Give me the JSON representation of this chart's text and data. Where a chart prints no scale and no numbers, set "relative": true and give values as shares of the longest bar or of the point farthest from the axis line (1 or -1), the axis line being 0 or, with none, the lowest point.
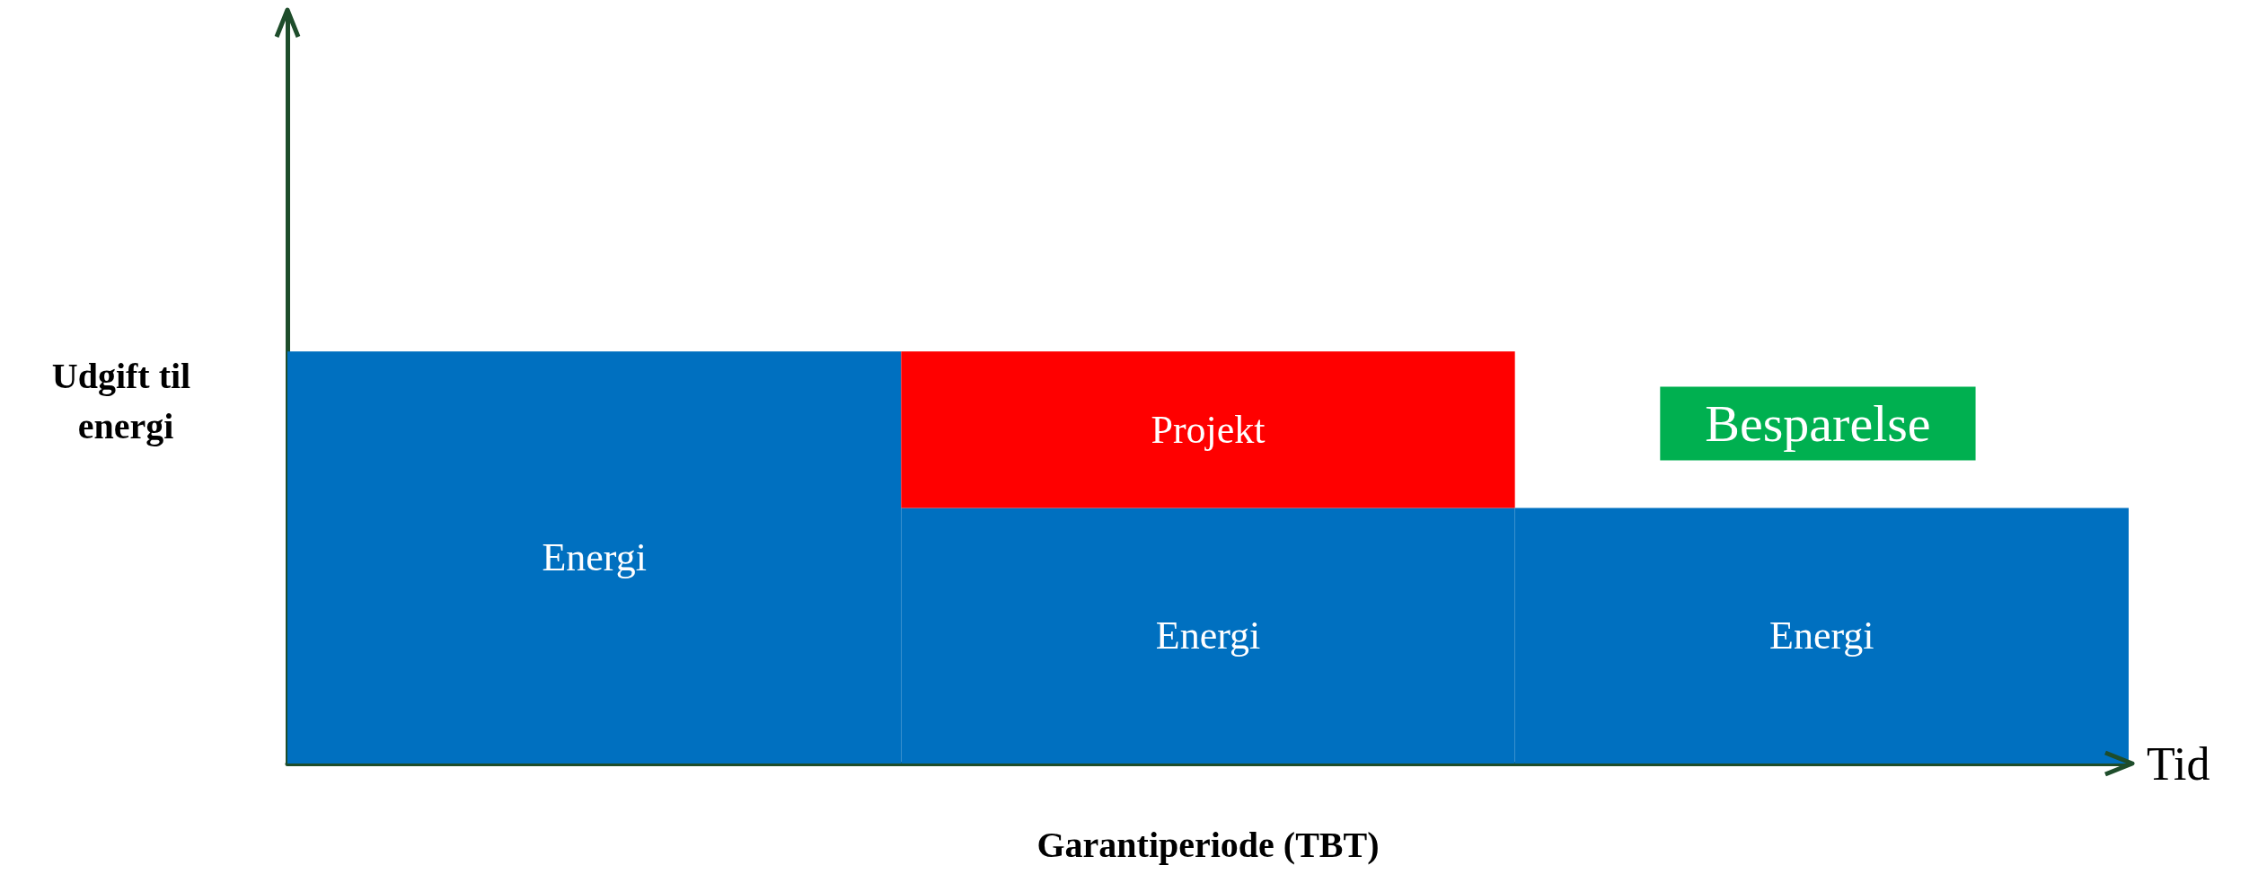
{
  "chart_data": {
    "type": "bar",
    "stacked": true,
    "relative": true,
    "xlabel": "Tid",
    "ylabel": "Udgift til energi",
    "categories": [
      null,
      null,
      null
    ],
    "legend": false,
    "grid": false,
    "series": [
      {
        "name": "Energi",
        "color": "#0070c0",
        "values": [
          1,
          0.62,
          0.62
        ]
      },
      {
        "name": "Projekt",
        "color": "#ff0000",
        "values": [
          null,
          0.38,
          null
        ]
      }
    ],
    "annotations": [
      "Besparelse",
      "Garantiperiode (TBT)"
    ]
  }
}
